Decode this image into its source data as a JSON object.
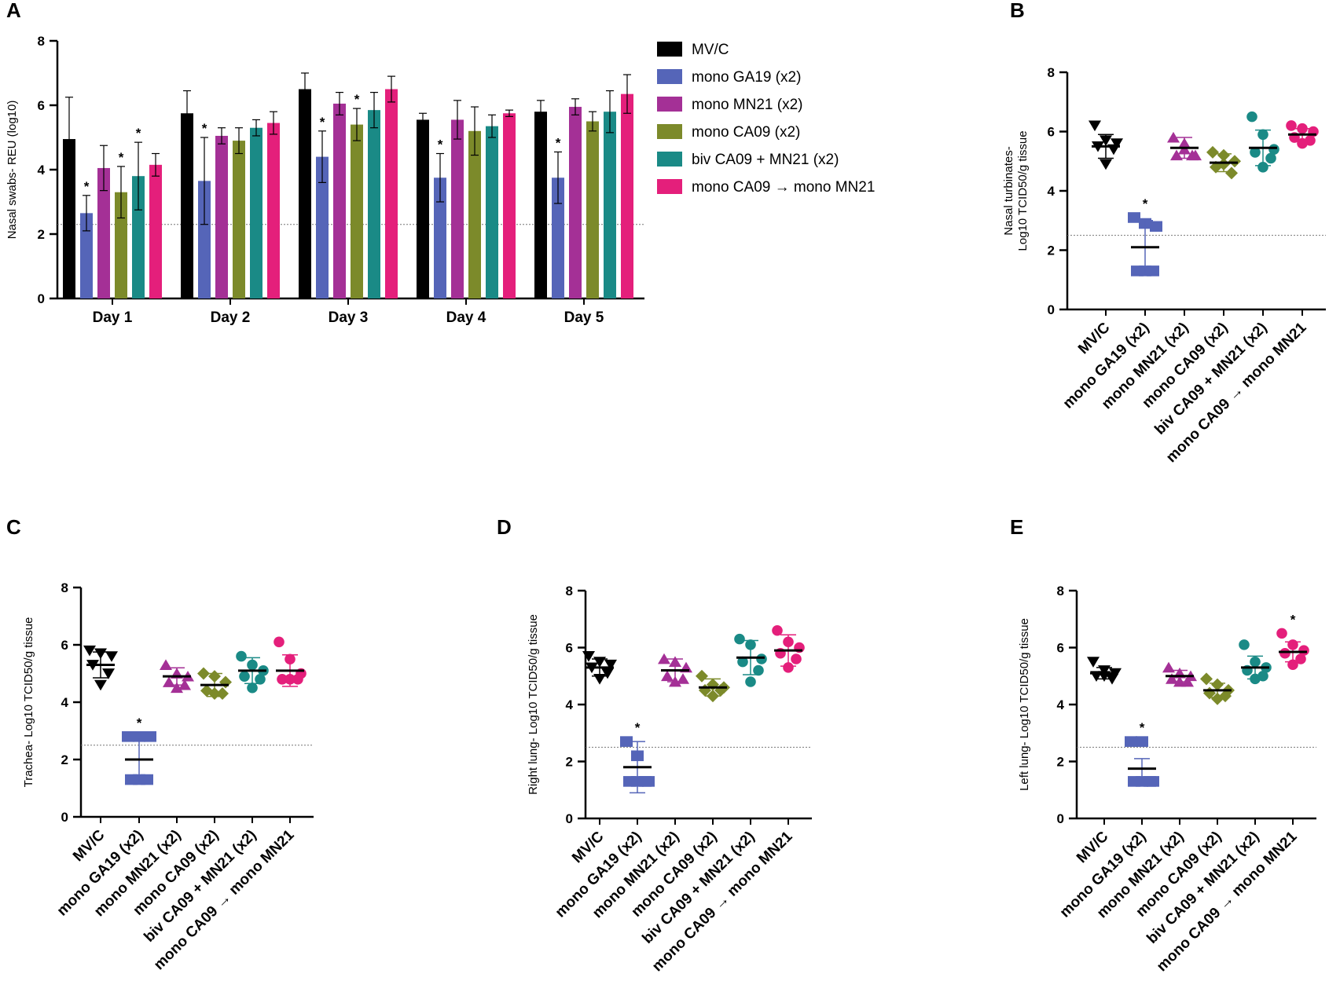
{
  "colors": {
    "MV/C": "#000000",
    "mono GA19 (x2)": "#5565b8",
    "mono MN21 (x2)": "#a43096",
    "mono CA09 (x2)": "#7c8a2a",
    "biv CA09 + MN21 (x2)": "#1a8a86",
    "mono CA09 → mono MN21": "#e41f7b"
  },
  "groups": [
    "MV/C",
    "mono GA19 (x2)",
    "mono MN21 (x2)",
    "mono CA09 (x2)",
    "biv CA09 + MN21 (x2)",
    "mono CA09 → mono MN21"
  ],
  "chart_data": [
    {
      "panel": "A",
      "type": "bar",
      "ylabel": "Nasal swabs- REU (log10)",
      "ylim": [
        0,
        8
      ],
      "yticks": [
        0,
        2,
        4,
        6,
        8
      ],
      "threshold": 2.3,
      "categories": [
        "Day 1",
        "Day 2",
        "Day 3",
        "Day 4",
        "Day 5"
      ],
      "legend": "top-right",
      "series": [
        {
          "name": "MV/C",
          "values": [
            4.95,
            5.75,
            6.5,
            5.55,
            5.8
          ],
          "errors": [
            1.3,
            0.7,
            0.5,
            0.2,
            0.35
          ],
          "sig": [
            false,
            false,
            false,
            false,
            false
          ]
        },
        {
          "name": "mono GA19 (x2)",
          "values": [
            2.65,
            3.65,
            4.4,
            3.75,
            3.75
          ],
          "errors": [
            0.55,
            1.35,
            0.8,
            0.75,
            0.8
          ],
          "sig": [
            true,
            true,
            true,
            true,
            true
          ]
        },
        {
          "name": "mono MN21 (x2)",
          "values": [
            4.05,
            5.05,
            6.05,
            5.55,
            5.95
          ],
          "errors": [
            0.7,
            0.25,
            0.35,
            0.6,
            0.25
          ],
          "sig": [
            false,
            false,
            false,
            false,
            false
          ]
        },
        {
          "name": "mono CA09 (x2)",
          "values": [
            3.3,
            4.9,
            5.4,
            5.2,
            5.5
          ],
          "errors": [
            0.8,
            0.4,
            0.5,
            0.75,
            0.3
          ],
          "sig": [
            true,
            false,
            true,
            false,
            false
          ]
        },
        {
          "name": "biv CA09 + MN21 (x2)",
          "values": [
            3.8,
            5.3,
            5.85,
            5.35,
            5.8
          ],
          "errors": [
            1.05,
            0.25,
            0.55,
            0.35,
            0.65
          ],
          "sig": [
            true,
            false,
            false,
            false,
            false
          ]
        },
        {
          "name": "mono CA09 → mono MN21",
          "values": [
            4.15,
            5.45,
            6.5,
            5.75,
            6.35
          ],
          "errors": [
            0.35,
            0.35,
            0.4,
            0.1,
            0.6
          ],
          "sig": [
            false,
            false,
            false,
            false,
            false
          ]
        }
      ]
    },
    {
      "panel": "B",
      "type": "scatter",
      "ylabel_line1": "Nasal turbinates-",
      "ylabel_line2": "Log10 TCID50/g tissue",
      "ylim": [
        0,
        8
      ],
      "yticks": [
        0,
        2,
        4,
        6,
        8
      ],
      "threshold": 2.5,
      "groups": [
        {
          "name": "MV/C",
          "points": [
            6.2,
            5.7,
            5.6,
            5.5,
            5.4,
            4.9
          ],
          "mean": 5.5,
          "sd": 0.4,
          "sig": false
        },
        {
          "name": "mono GA19 (x2)",
          "points": [
            3.1,
            2.9,
            2.8,
            1.3,
            1.3,
            1.3
          ],
          "mean": 2.1,
          "sd": 0.9,
          "sig": true
        },
        {
          "name": "mono MN21 (x2)",
          "points": [
            5.8,
            5.6,
            5.2,
            5.2,
            5.2,
            5.4
          ],
          "mean": 5.45,
          "sd": 0.35,
          "sig": false
        },
        {
          "name": "mono CA09 (x2)",
          "points": [
            5.3,
            5.2,
            5.0,
            4.8,
            4.6,
            4.9
          ],
          "mean": 4.95,
          "sd": 0.3,
          "sig": false
        },
        {
          "name": "biv CA09 + MN21 (x2)",
          "points": [
            6.5,
            5.9,
            5.4,
            5.3,
            5.1,
            4.8
          ],
          "mean": 5.45,
          "sd": 0.6,
          "sig": false
        },
        {
          "name": "mono CA09 → mono MN21",
          "points": [
            6.2,
            6.1,
            6.0,
            5.8,
            5.7,
            5.6
          ],
          "mean": 5.9,
          "sd": 0.2,
          "sig": false
        }
      ]
    },
    {
      "panel": "C",
      "type": "scatter",
      "ylabel": "Trachea- Log10 TCID50/g tissue",
      "ylim": [
        0,
        8
      ],
      "yticks": [
        0,
        2,
        4,
        6,
        8
      ],
      "threshold": 2.5,
      "groups": [
        {
          "name": "MV/C",
          "points": [
            5.8,
            5.7,
            5.6,
            5.3,
            5.0,
            4.6
          ],
          "mean": 5.3,
          "sd": 0.45,
          "sig": false
        },
        {
          "name": "mono GA19 (x2)",
          "points": [
            2.8,
            2.8,
            2.8,
            1.3,
            1.3,
            1.3
          ],
          "mean": 2.0,
          "sd": 0.8,
          "sig": true
        },
        {
          "name": "mono MN21 (x2)",
          "points": [
            5.3,
            5.0,
            4.9,
            4.7,
            4.6,
            4.5
          ],
          "mean": 4.9,
          "sd": 0.3,
          "sig": false
        },
        {
          "name": "mono CA09 (x2)",
          "points": [
            5.0,
            4.9,
            4.7,
            4.4,
            4.3,
            4.3
          ],
          "mean": 4.6,
          "sd": 0.4,
          "sig": false
        },
        {
          "name": "biv CA09 + MN21 (x2)",
          "points": [
            5.6,
            5.3,
            5.1,
            4.9,
            4.8,
            4.5
          ],
          "mean": 5.1,
          "sd": 0.45,
          "sig": false
        },
        {
          "name": "mono CA09 → mono MN21",
          "points": [
            6.1,
            5.5,
            5.0,
            4.8,
            4.8,
            4.8
          ],
          "mean": 5.1,
          "sd": 0.55,
          "sig": false
        }
      ]
    },
    {
      "panel": "D",
      "type": "scatter",
      "ylabel": "Right lung- Log10 TCID50/g tissue",
      "ylim": [
        0,
        8
      ],
      "yticks": [
        0,
        2,
        4,
        6,
        8
      ],
      "threshold": 2.5,
      "groups": [
        {
          "name": "MV/C",
          "points": [
            5.7,
            5.5,
            5.4,
            5.3,
            5.1,
            4.9
          ],
          "mean": 5.3,
          "sd": 0.3,
          "sig": false
        },
        {
          "name": "mono GA19 (x2)",
          "points": [
            2.7,
            2.2,
            1.3,
            1.3,
            1.3,
            1.3
          ],
          "mean": 1.8,
          "sd": 0.9,
          "sig": true
        },
        {
          "name": "mono MN21 (x2)",
          "points": [
            5.6,
            5.5,
            5.3,
            5.0,
            4.9,
            4.8
          ],
          "mean": 5.2,
          "sd": 0.4,
          "sig": false
        },
        {
          "name": "mono CA09 (x2)",
          "points": [
            5.0,
            4.7,
            4.6,
            4.5,
            4.5,
            4.3
          ],
          "mean": 4.6,
          "sd": 0.3,
          "sig": false
        },
        {
          "name": "biv CA09 + MN21 (x2)",
          "points": [
            6.3,
            6.1,
            5.6,
            5.5,
            5.2,
            4.8
          ],
          "mean": 5.65,
          "sd": 0.6,
          "sig": false
        },
        {
          "name": "mono CA09 → mono MN21",
          "points": [
            6.6,
            6.2,
            6.0,
            5.8,
            5.6,
            5.3
          ],
          "mean": 5.9,
          "sd": 0.55,
          "sig": false
        }
      ]
    },
    {
      "panel": "E",
      "type": "scatter",
      "ylabel": "Left lung- Log10 TCID50/g tissue",
      "ylim": [
        0,
        8
      ],
      "yticks": [
        0,
        2,
        4,
        6,
        8
      ],
      "threshold": 2.5,
      "groups": [
        {
          "name": "MV/C",
          "points": [
            5.5,
            5.2,
            5.1,
            5.0,
            4.9,
            5.0
          ],
          "mean": 5.1,
          "sd": 0.2,
          "sig": false
        },
        {
          "name": "mono GA19 (x2)",
          "points": [
            2.7,
            2.7,
            1.3,
            1.3,
            1.3,
            1.3
          ],
          "mean": 1.75,
          "sd": 0.35,
          "sig": true
        },
        {
          "name": "mono MN21 (x2)",
          "points": [
            5.3,
            5.1,
            5.0,
            4.9,
            4.8,
            4.8
          ],
          "mean": 5.0,
          "sd": 0.2,
          "sig": false
        },
        {
          "name": "mono CA09 (x2)",
          "points": [
            4.9,
            4.7,
            4.5,
            4.4,
            4.3,
            4.2
          ],
          "mean": 4.5,
          "sd": 0.25,
          "sig": false
        },
        {
          "name": "biv CA09 + MN21 (x2)",
          "points": [
            6.1,
            5.5,
            5.3,
            5.2,
            5.0,
            4.9
          ],
          "mean": 5.3,
          "sd": 0.4,
          "sig": false
        },
        {
          "name": "mono CA09 → mono MN21",
          "points": [
            6.5,
            6.1,
            5.9,
            5.8,
            5.6,
            5.4
          ],
          "mean": 5.85,
          "sd": 0.35,
          "sig": true
        }
      ]
    }
  ]
}
